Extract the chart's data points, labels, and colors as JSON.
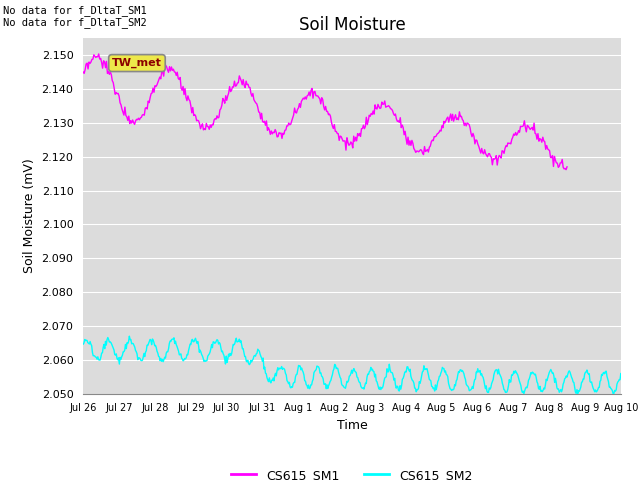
{
  "title": "Soil Moisture",
  "ylabel": "Soil Moisture (mV)",
  "xlabel": "Time",
  "annotation_text": "No data for f_DltaT_SM1\nNo data for f_DltaT_SM2",
  "tw_met_label": "TW_met",
  "ylim": [
    2.05,
    2.155
  ],
  "yticks": [
    2.05,
    2.06,
    2.07,
    2.08,
    2.09,
    2.1,
    2.11,
    2.12,
    2.13,
    2.14,
    2.15
  ],
  "xtick_labels": [
    "Jul 26",
    "Jul 27",
    "Jul 28",
    "Jul 29",
    "Jul 30",
    "Jul 31",
    "Aug 1",
    "Aug 2",
    "Aug 3",
    "Aug 4",
    "Aug 5",
    "Aug 6",
    "Aug 7",
    "Aug 8",
    "Aug 9",
    "Aug 10"
  ],
  "color_sm1": "#FF00FF",
  "color_sm2": "#00FFFF",
  "legend_sm1": "CS615_SM1",
  "legend_sm2": "CS615_SM2",
  "bg_color": "#DCDCDC",
  "title_fontsize": 12,
  "label_fontsize": 9,
  "tick_fontsize": 8
}
